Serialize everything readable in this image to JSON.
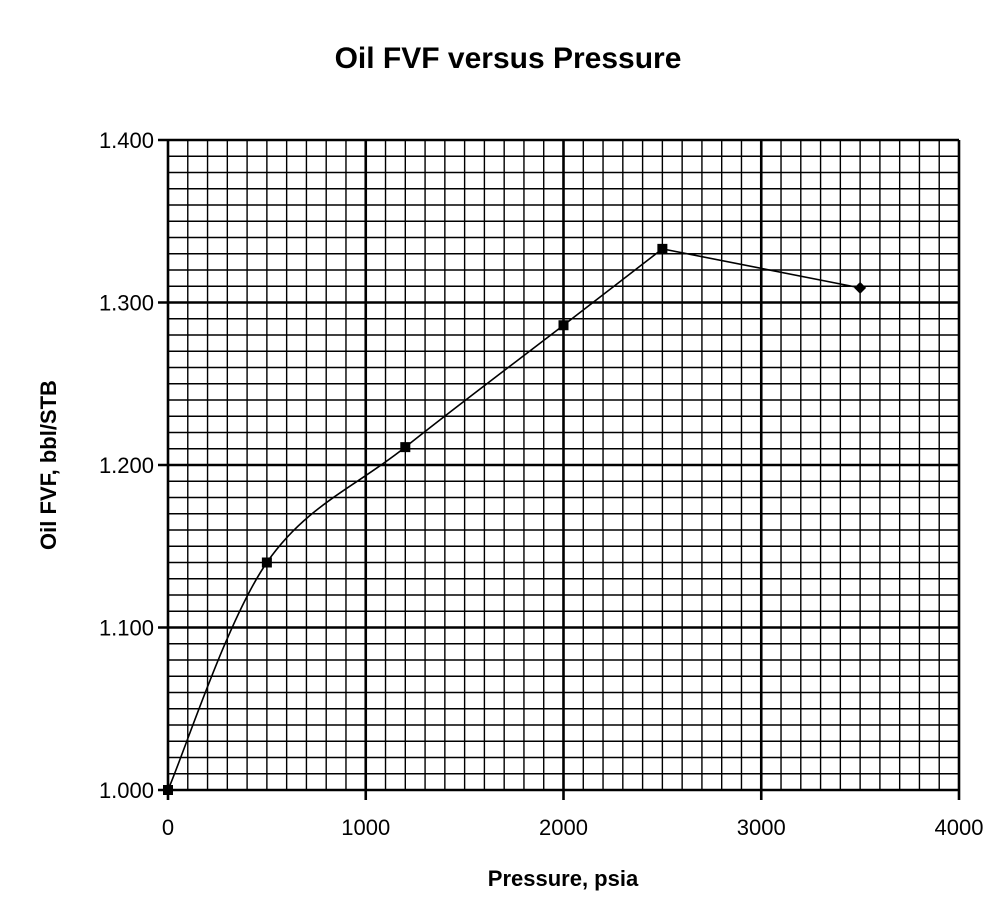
{
  "chart_data": {
    "type": "line",
    "title": "Oil FVF versus Pressure",
    "xlabel": "Pressure, psia",
    "ylabel": "Oil FVF, bbl/STB",
    "xlim": [
      0,
      4000
    ],
    "ylim": [
      1.0,
      1.4
    ],
    "x_major_step": 1000,
    "x_minor_step": 100,
    "y_major_step": 0.1,
    "y_minor_step": 0.01,
    "x_tick_labels": [
      "0",
      "1000",
      "2000",
      "3000",
      "4000"
    ],
    "y_tick_labels": [
      "1.000",
      "1.100",
      "1.200",
      "1.300",
      "1.400"
    ],
    "grid": true,
    "legend": "none",
    "series": [
      {
        "marker": "square",
        "smooth": true,
        "color": "#000000",
        "x": [
          0,
          500,
          1200,
          2000,
          2500
        ],
        "y": [
          1.0,
          1.14,
          1.211,
          1.286,
          1.333
        ]
      },
      {
        "marker": "diamond",
        "smooth": false,
        "color": "#000000",
        "x": [
          2500,
          3500
        ],
        "y": [
          1.333,
          1.309
        ]
      }
    ]
  }
}
